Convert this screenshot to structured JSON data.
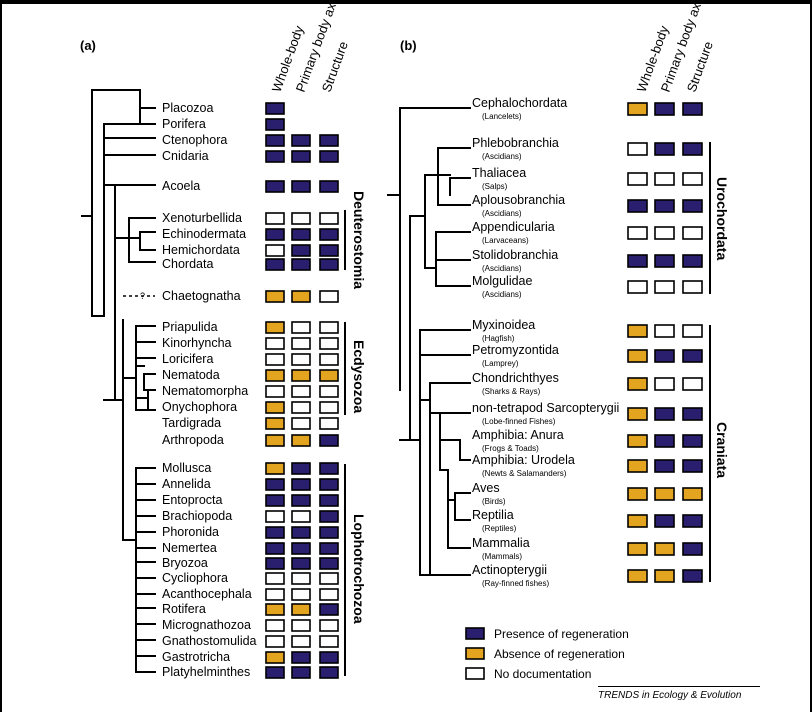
{
  "colors": {
    "presence": "#2a1f6e",
    "absence": "#e3a51f",
    "none": "#ffffff"
  },
  "columns": [
    "Whole-body",
    "Primary body axis",
    "Structure"
  ],
  "panels": [
    {
      "label": "(a)",
      "taxa": [
        {
          "name": "Placozoa",
          "states": [
            "p",
            "",
            ""
          ]
        },
        {
          "name": "Porifera",
          "states": [
            "p",
            "",
            ""
          ]
        },
        {
          "name": "Ctenophora",
          "states": [
            "p",
            "p",
            "p"
          ]
        },
        {
          "name": "Cnidaria",
          "states": [
            "p",
            "p",
            "p"
          ]
        },
        {
          "name": "Acoela",
          "states": [
            "p",
            "p",
            "p"
          ]
        },
        {
          "name": "Xenoturbellida",
          "states": [
            "n",
            "n",
            "n"
          ]
        },
        {
          "name": "Echinodermata",
          "states": [
            "p",
            "p",
            "p"
          ]
        },
        {
          "name": "Hemichordata",
          "states": [
            "n",
            "p",
            "p"
          ]
        },
        {
          "name": "Chordata",
          "states": [
            "p",
            "p",
            "p"
          ]
        },
        {
          "name": "Chaetognatha",
          "states": [
            "a",
            "a",
            "n"
          ]
        },
        {
          "name": "Priapulida",
          "states": [
            "a",
            "n",
            "n"
          ]
        },
        {
          "name": "Kinorhyncha",
          "states": [
            "n",
            "n",
            "n"
          ]
        },
        {
          "name": "Loricifera",
          "states": [
            "n",
            "n",
            "n"
          ]
        },
        {
          "name": "Nematoda",
          "states": [
            "a",
            "a",
            "a"
          ]
        },
        {
          "name": "Nematomorpha",
          "states": [
            "n",
            "n",
            "n"
          ]
        },
        {
          "name": "Onychophora",
          "states": [
            "a",
            "n",
            "n"
          ]
        },
        {
          "name": "Tardigrada",
          "states": [
            "a",
            "n",
            "n"
          ]
        },
        {
          "name": "Arthropoda",
          "states": [
            "a",
            "a",
            "p"
          ]
        },
        {
          "name": "Mollusca",
          "states": [
            "a",
            "p",
            "p"
          ]
        },
        {
          "name": "Annelida",
          "states": [
            "p",
            "p",
            "p"
          ]
        },
        {
          "name": "Entoprocta",
          "states": [
            "p",
            "p",
            "p"
          ]
        },
        {
          "name": "Brachiopoda",
          "states": [
            "n",
            "n",
            "p"
          ]
        },
        {
          "name": "Phoronida",
          "states": [
            "p",
            "p",
            "p"
          ]
        },
        {
          "name": "Nemertea",
          "states": [
            "p",
            "p",
            "p"
          ]
        },
        {
          "name": "Bryozoa",
          "states": [
            "p",
            "p",
            "p"
          ]
        },
        {
          "name": "Cycliophora",
          "states": [
            "n",
            "n",
            "n"
          ]
        },
        {
          "name": "Acanthocephala",
          "states": [
            "n",
            "n",
            "n"
          ]
        },
        {
          "name": "Rotifera",
          "states": [
            "a",
            "a",
            "p"
          ]
        },
        {
          "name": "Micrognathozoa",
          "states": [
            "n",
            "n",
            "n"
          ]
        },
        {
          "name": "Gnathostomulida",
          "states": [
            "n",
            "n",
            "n"
          ]
        },
        {
          "name": "Gastrotricha",
          "states": [
            "a",
            "p",
            "p"
          ]
        },
        {
          "name": "Platyhelminthes",
          "states": [
            "p",
            "p",
            "p"
          ]
        }
      ],
      "question_mark": "?",
      "groups": [
        "Deuterostomia",
        "Ecdysozoa",
        "Lophotrochozoa"
      ]
    },
    {
      "label": "(b)",
      "taxa": [
        {
          "name": "Cephalochordata",
          "sub": "(Lancelets)",
          "states": [
            "a",
            "p",
            "p"
          ]
        },
        {
          "name": "Phlebobranchia",
          "sub": "(Ascidians)",
          "states": [
            "n",
            "p",
            "p"
          ]
        },
        {
          "name": "Thaliacea",
          "sub": "(Salps)",
          "states": [
            "n",
            "n",
            "n"
          ]
        },
        {
          "name": "Aplousobranchia",
          "sub": "(Ascidians)",
          "states": [
            "p",
            "p",
            "p"
          ]
        },
        {
          "name": "Appendicularia",
          "sub": "(Larvaceans)",
          "states": [
            "n",
            "n",
            "n"
          ]
        },
        {
          "name": "Stolidobranchia",
          "sub": "(Ascidians)",
          "states": [
            "p",
            "p",
            "p"
          ]
        },
        {
          "name": "Molgulidae",
          "sub": "(Ascidians)",
          "states": [
            "n",
            "n",
            "n"
          ]
        },
        {
          "name": "Myxinoidea",
          "sub": "(Hagfish)",
          "states": [
            "a",
            "n",
            "n"
          ]
        },
        {
          "name": "Petromyzontida",
          "sub": "(Lamprey)",
          "states": [
            "a",
            "p",
            "p"
          ]
        },
        {
          "name": "Chondrichthyes",
          "sub": "(Sharks & Rays)",
          "states": [
            "a",
            "n",
            "n"
          ]
        },
        {
          "name": "non-tetrapod Sarcopterygii",
          "sub": "(Lobe-finned Fishes)",
          "states": [
            "a",
            "p",
            "p"
          ]
        },
        {
          "name": "Amphibia: Anura",
          "sub": "(Frogs & Toads)",
          "states": [
            "a",
            "p",
            "p"
          ]
        },
        {
          "name": "Amphibia: Urodela",
          "sub": "(Newts & Salamanders)",
          "states": [
            "a",
            "p",
            "p"
          ]
        },
        {
          "name": "Aves",
          "sub": "(Birds)",
          "states": [
            "a",
            "a",
            "a"
          ]
        },
        {
          "name": "Reptilia",
          "sub": "(Reptiles)",
          "states": [
            "a",
            "p",
            "p"
          ]
        },
        {
          "name": "Mammalia",
          "sub": "(Mammals)",
          "states": [
            "a",
            "a",
            "p"
          ]
        },
        {
          "name": "Actinopterygii",
          "sub": "(Ray-finned fishes)",
          "states": [
            "a",
            "a",
            "p"
          ]
        }
      ],
      "groups": [
        "Urochordata",
        "Craniata"
      ]
    }
  ],
  "legend": [
    {
      "state": "p",
      "label": "Presence of regeneration"
    },
    {
      "state": "a",
      "label": "Absence of regeneration"
    },
    {
      "state": "n",
      "label": "No documentation"
    }
  ],
  "footer": "TRENDS in Ecology & Evolution"
}
